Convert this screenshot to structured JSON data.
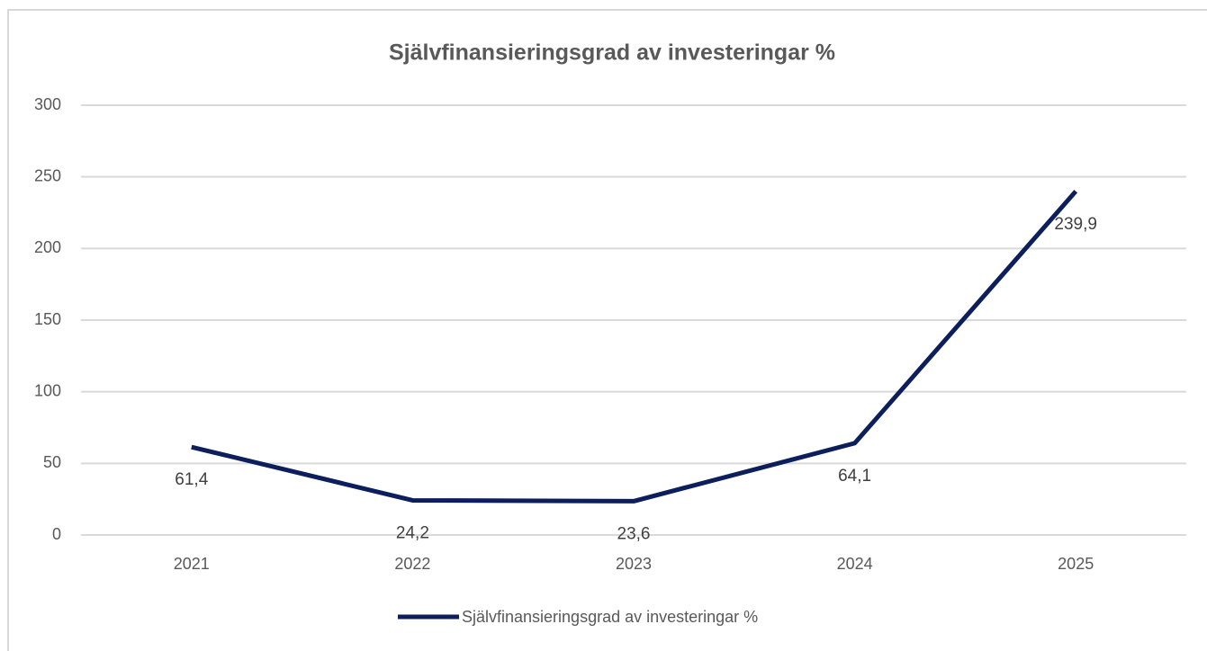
{
  "chart_data": {
    "type": "line",
    "title": "Självfinansieringsgrad av investeringar %",
    "categories": [
      "2021",
      "2022",
      "2023",
      "2024",
      "2025"
    ],
    "series": [
      {
        "name": "Självfinansieringsgrad av investeringar %",
        "color": "#0c1f5c",
        "values": [
          61.4,
          24.2,
          23.6,
          64.1,
          239.9
        ],
        "value_labels": [
          "61,4",
          "24,2",
          "23,6",
          "64,1",
          "239,9"
        ]
      }
    ],
    "ylim": [
      0,
      300
    ],
    "yticks": [
      0,
      50,
      100,
      150,
      200,
      250,
      300
    ],
    "grid": true,
    "legend": "bottom"
  }
}
